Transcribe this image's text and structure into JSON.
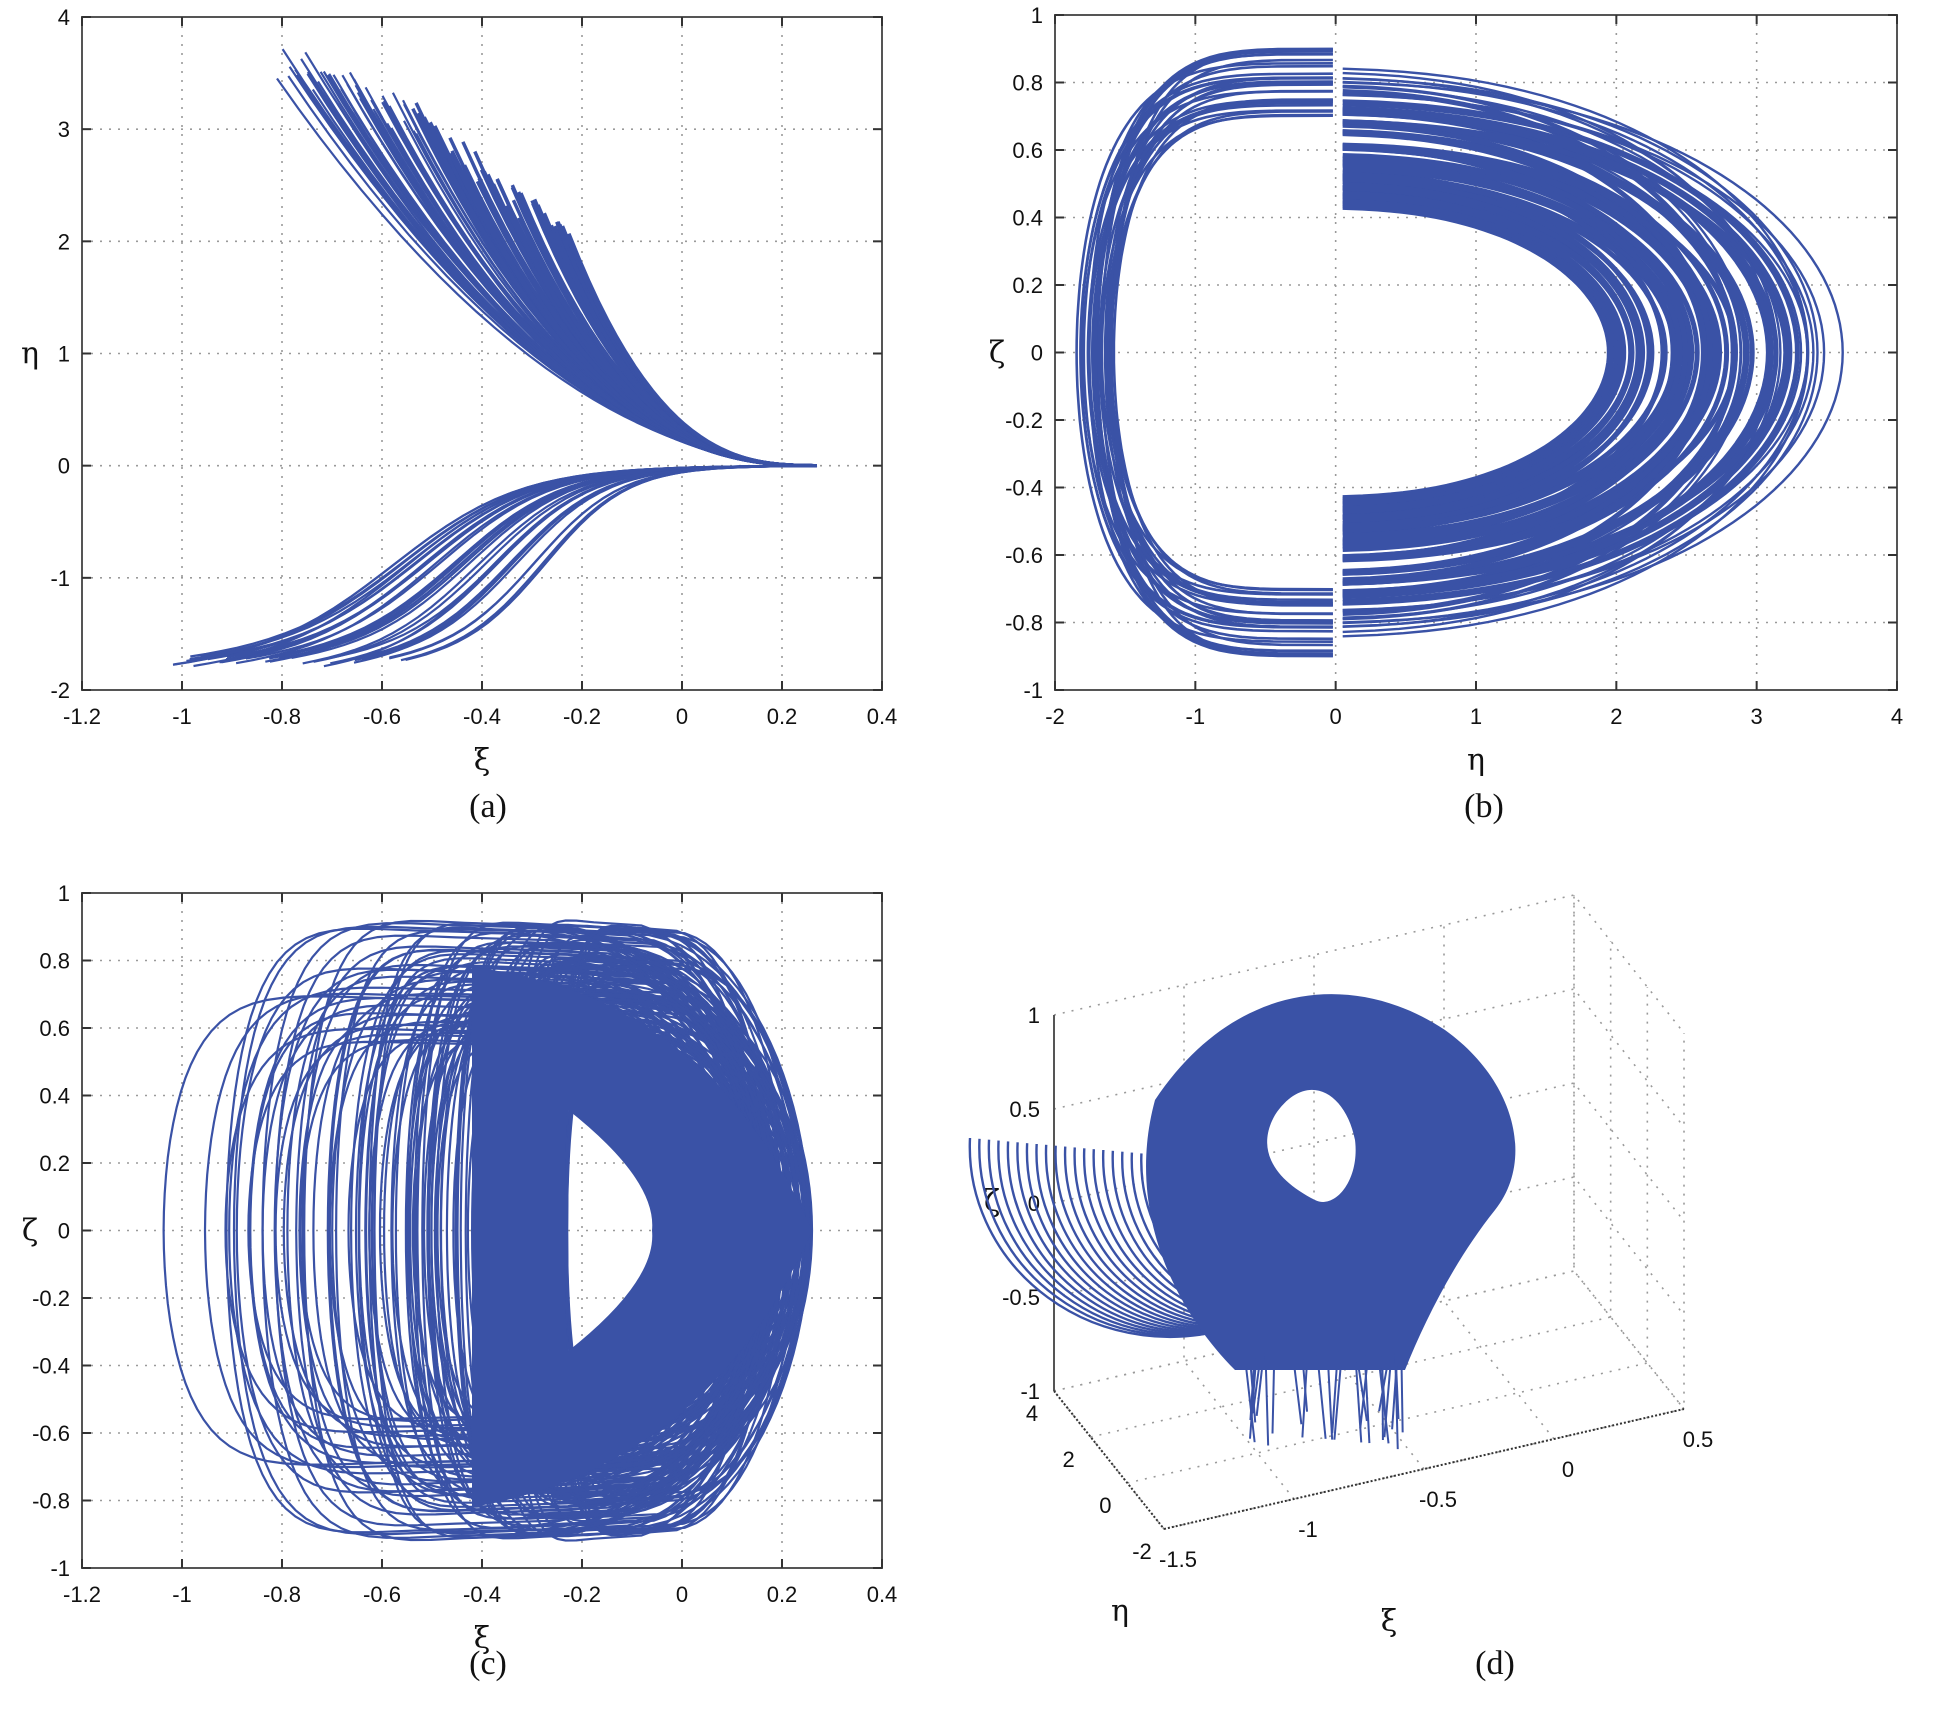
{
  "figure": {
    "line_color": "#3a52a6",
    "grid_color": "#9a9a9a",
    "panels": [
      {
        "id": "a",
        "caption": "(a)"
      },
      {
        "id": "b",
        "caption": "(b)"
      },
      {
        "id": "c",
        "caption": "(c)"
      },
      {
        "id": "d",
        "caption": "(d)"
      }
    ]
  },
  "chart_data": [
    {
      "panel": "(a)",
      "type": "line",
      "title": "",
      "xlabel": "ξ",
      "ylabel": "η",
      "xlim": [
        -1.2,
        0.4
      ],
      "ylim": [
        -2,
        4
      ],
      "xticks": [
        "-1.2",
        "-1",
        "-0.8",
        "-0.6",
        "-0.4",
        "-0.2",
        "0",
        "0.2",
        "0.4"
      ],
      "yticks": [
        "-2",
        "-1",
        "0",
        "1",
        "2",
        "3",
        "4"
      ],
      "grid": true,
      "legend": null,
      "description": "Phase portrait ξ–η: dense bundle of trajectories converging to (0.27, 0); upper branch spikes up to η≈3.8 near ξ≈-0.8, lower branch descends to η≈-1.85 for ξ between -1.0 and -0.55.",
      "key_points": {
        "convergence_point": [
          0.27,
          0
        ],
        "max_eta": [
          -0.8,
          3.8
        ],
        "dense_region_top_edge": [
          [
            -0.55,
            3.3
          ],
          [
            -0.4,
            2.9
          ],
          [
            -0.3,
            2.4
          ],
          [
            -0.23,
            2.1
          ]
        ],
        "min_eta": -1.85,
        "lower_branch_xi_range": [
          -1.02,
          -0.55
        ]
      }
    },
    {
      "panel": "(b)",
      "type": "line",
      "title": "",
      "xlabel": "η",
      "ylabel": "ζ",
      "xlim": [
        -2,
        4
      ],
      "ylim": [
        -1,
        1
      ],
      "xticks": [
        "-2",
        "-1",
        "0",
        "1",
        "2",
        "3",
        "4"
      ],
      "yticks": [
        "-1",
        "-0.8",
        "-0.6",
        "-0.4",
        "-0.2",
        "0",
        "0.2",
        "0.4",
        "0.6",
        "0.8",
        "1"
      ],
      "grid": true,
      "legend": null,
      "description": "Phase portrait η–ζ: double-scroll attractor. Left lobe η∈[-1.85, 0], ζ∈[-0.9, 0.85]; right lobe η∈[0, 3.75], ζ∈[-0.9, 0.9] with empty hole η∈[0.1, 1.95], ζ∈[-0.43, 0.43].",
      "key_points": {
        "left_lobe": {
          "eta": [
            -1.85,
            0
          ],
          "zeta": [
            -0.9,
            0.85
          ]
        },
        "right_lobe": {
          "eta": [
            0,
            3.75
          ],
          "zeta": [
            -0.9,
            0.9
          ]
        },
        "right_hole": {
          "eta": [
            0.1,
            1.95
          ],
          "zeta": [
            -0.43,
            0.43
          ]
        }
      }
    },
    {
      "panel": "(c)",
      "type": "line",
      "title": "",
      "xlabel": "ξ",
      "ylabel": "ζ",
      "xlim": [
        -1.2,
        0.4
      ],
      "ylim": [
        -1,
        1
      ],
      "xticks": [
        "-1.2",
        "-1",
        "-0.8",
        "-0.6",
        "-0.4",
        "-0.2",
        "0",
        "0.2",
        "0.4"
      ],
      "yticks": [
        "-1",
        "-0.8",
        "-0.6",
        "-0.4",
        "-0.2",
        "0",
        "0.2",
        "0.4",
        "0.6",
        "0.8",
        "1"
      ],
      "grid": true,
      "legend": null,
      "description": "Phase portrait ξ–ζ: nested loops spanning ξ∈[-1.02, 0.26], ζ∈[-0.91, 0.9], with an empty D-shaped hole ξ∈[-0.23, -0.05], ζ∈[-0.35, 0.35].",
      "key_points": {
        "extent": {
          "xi": [
            -1.02,
            0.26
          ],
          "zeta": [
            -0.91,
            0.9
          ]
        },
        "hole": {
          "xi": [
            -0.23,
            -0.05
          ],
          "zeta": [
            -0.35,
            0.35
          ]
        }
      }
    },
    {
      "panel": "(d)",
      "type": "line",
      "title": "",
      "xlabel": "ξ",
      "ylabel": "η",
      "zlabel": "ζ",
      "xlim": [
        -1.5,
        0.5
      ],
      "ylim": [
        -2,
        4
      ],
      "zlim": [
        -1,
        1
      ],
      "xticks": [
        "-1.5",
        "-1",
        "-0.5",
        "0",
        "0.5"
      ],
      "yticks": [
        "-2",
        "0",
        "2",
        "4"
      ],
      "zticks": [
        "-1",
        "-0.5",
        "0",
        "0.5",
        "1"
      ],
      "grid": true,
      "legend": null,
      "description": "3D phase portrait (ξ, η, ζ) of the chaotic attractor with a visible hole near the center-right."
    }
  ]
}
